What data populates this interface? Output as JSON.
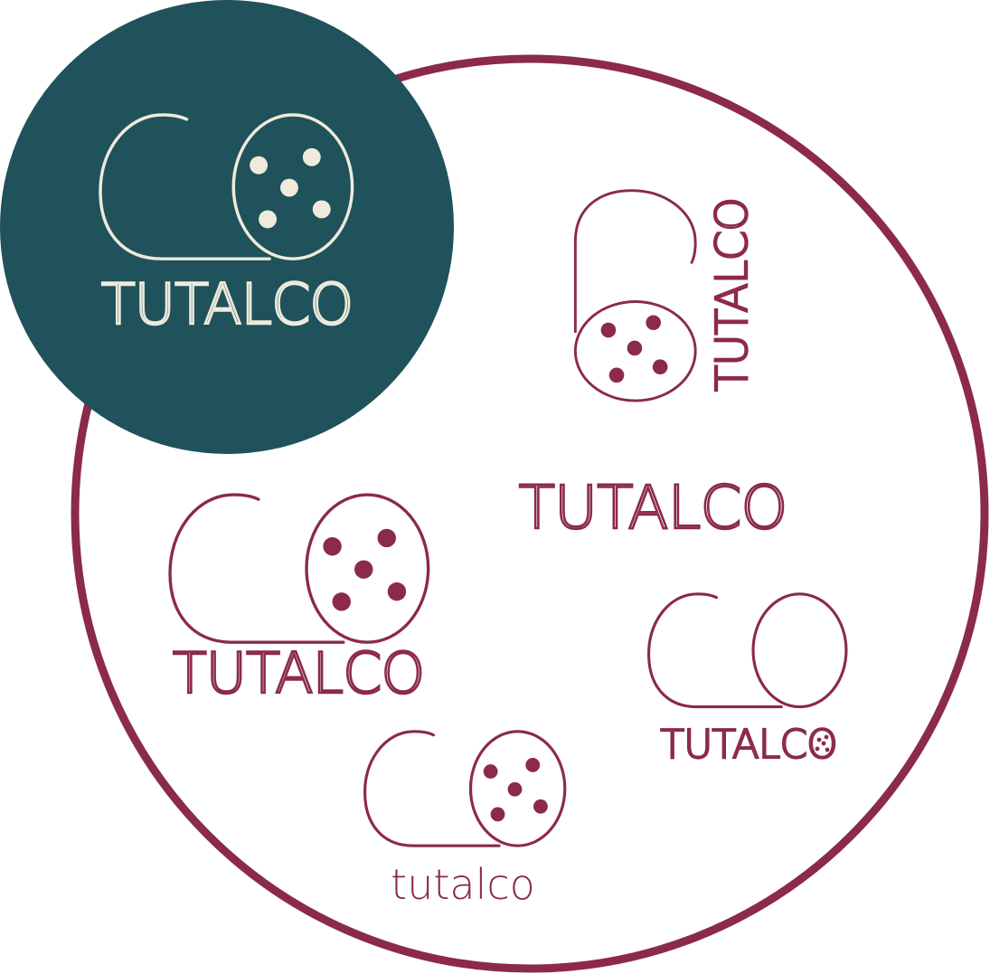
{
  "colors": {
    "burgundy": "#8b2a4a",
    "teal": "#1f525a",
    "cream": "#efeadc",
    "background": "#ffffff"
  },
  "logos": [
    {
      "id": "teal-badge",
      "wordmark": "TUTALCO",
      "icon": "salami-logo-icon"
    },
    {
      "id": "vertical",
      "wordmark": "TUTALCO",
      "icon": "salami-logo-icon"
    },
    {
      "id": "wordmark-only",
      "wordmark": "TUTALCO"
    },
    {
      "id": "large",
      "wordmark": "TUTALCO",
      "icon": "salami-logo-icon"
    },
    {
      "id": "outline",
      "wordmark": "TUTALCO",
      "icon": "salami-outline-icon"
    },
    {
      "id": "lowercase",
      "wordmark": "tutalco",
      "icon": "salami-logo-icon"
    }
  ]
}
